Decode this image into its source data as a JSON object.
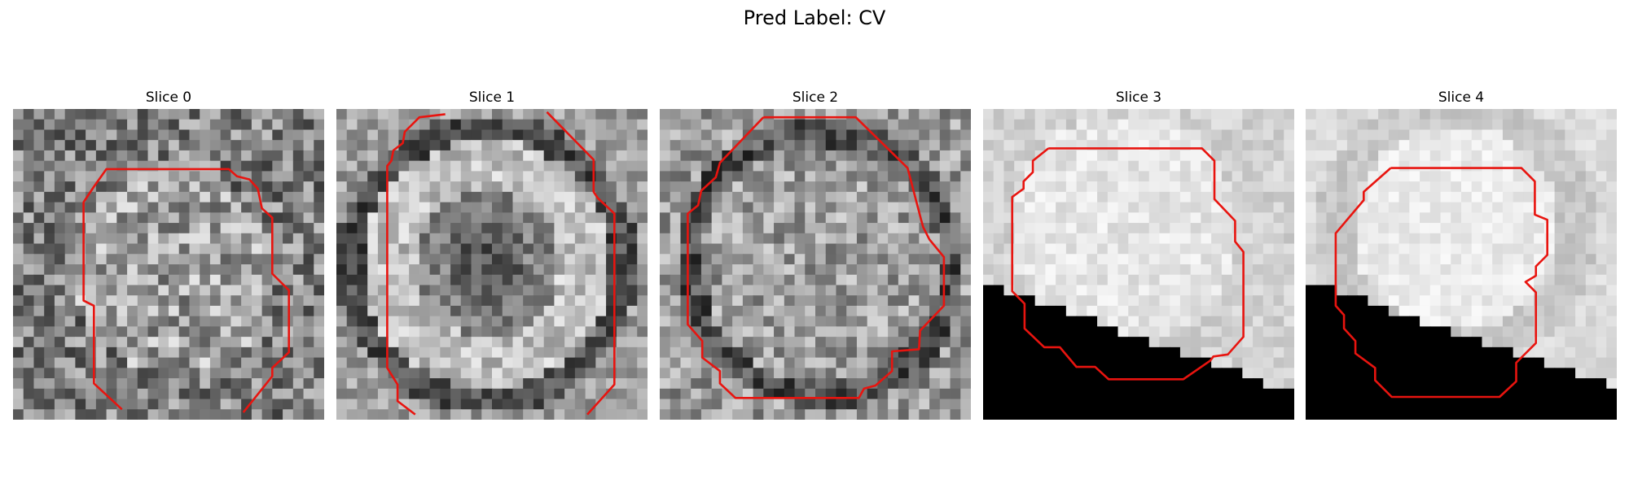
{
  "figure": {
    "title": "Pred Label: CV"
  },
  "panels": [
    {
      "title": "Slice 0",
      "name": "slice-0",
      "mask": "none"
    },
    {
      "title": "Slice 1",
      "name": "slice-1",
      "mask": "none"
    },
    {
      "title": "Slice 2",
      "name": "slice-2",
      "mask": "none"
    },
    {
      "title": "Slice 3",
      "name": "slice-3",
      "mask": "bottom-left-wedge"
    },
    {
      "title": "Slice 4",
      "name": "slice-4",
      "mask": "bottom-left-wedge"
    }
  ],
  "colors": {
    "contour": "#e8140f",
    "mask": "#000000",
    "background": "#ffffff"
  },
  "colormap": "gray"
}
